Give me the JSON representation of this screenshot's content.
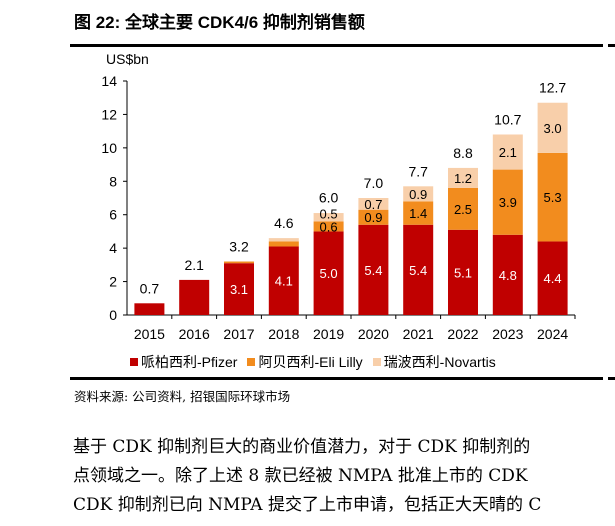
{
  "title": "图 22: 全球主要 CDK4/6 抑制剂销售额",
  "source": "资料来源: 公司资料, 招银国际环球市场",
  "body_lines": [
    "基于 CDK 抑制剂巨大的商业价值潜力，对于 CDK 抑制剂的",
    "点领域之一。除了上述 8 款已经被 NMPA 批准上市的 CDK",
    "CDK 抑制剂已向 NMPA 提交了上市申请，包括正大天晴的 C"
  ],
  "chart_data": {
    "type": "bar",
    "stacked": true,
    "ylabel": "US$bn",
    "ylim": [
      0,
      14
    ],
    "yticks": [
      "0",
      "2",
      "4",
      "6",
      "8",
      "10",
      "12",
      "14"
    ],
    "grid": false,
    "legend_position": "bottom",
    "categories": [
      "2015",
      "2016",
      "2017",
      "2018",
      "2019",
      "2020",
      "2021",
      "2022",
      "2023",
      "2024"
    ],
    "totals": [
      "0.7",
      "2.1",
      "3.2",
      "4.6",
      "6.0",
      "7.0",
      "7.7",
      "8.8",
      "10.7",
      "12.7"
    ],
    "series": [
      {
        "name": "哌柏西利-Pfizer",
        "color": "#c00000",
        "values": [
          0.7,
          2.1,
          3.1,
          4.1,
          5.0,
          5.4,
          5.4,
          5.1,
          4.8,
          4.4
        ],
        "labels": [
          "",
          "",
          "3.1",
          "4.1",
          "5.0",
          "5.4",
          "5.4",
          "5.1",
          "4.8",
          "4.4"
        ]
      },
      {
        "name": "阿贝西利-Eli Lilly",
        "color": "#f28c1e",
        "values": [
          0,
          0,
          0.1,
          0.3,
          0.6,
          0.9,
          1.4,
          2.5,
          3.9,
          5.3
        ],
        "labels": [
          "",
          "",
          "",
          "",
          "0.6",
          "0.9",
          "1.4",
          "2.5",
          "3.9",
          "5.3"
        ]
      },
      {
        "name": "瑞波西利-Novartis",
        "color": "#f8cfaa",
        "values": [
          0,
          0,
          0,
          0.2,
          0.5,
          0.7,
          0.9,
          1.2,
          2.1,
          3.0
        ],
        "labels": [
          "",
          "",
          "",
          "",
          "0.5",
          "0.7",
          "0.9",
          "1.2",
          "2.1",
          "3.0"
        ]
      }
    ]
  }
}
